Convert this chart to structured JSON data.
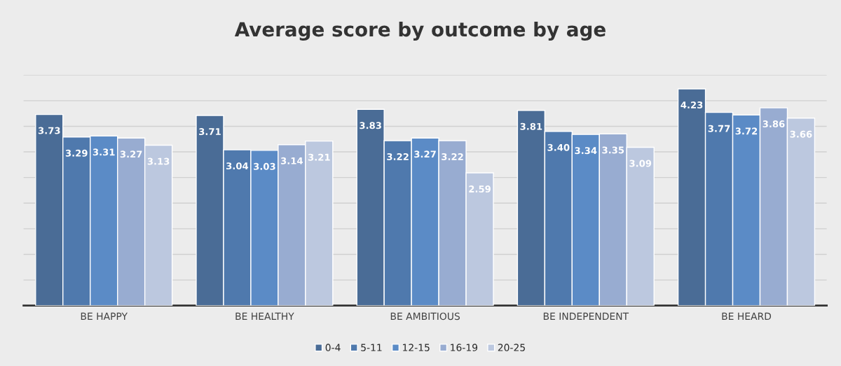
{
  "chart_data": {
    "type": "bar",
    "title": "Average score by outcome by age",
    "categories": [
      "BE HAPPY",
      "BE HEALTHY",
      "BE AMBITIOUS",
      "BE INDEPENDENT",
      "BE HEARD"
    ],
    "series": [
      {
        "name": "0-4",
        "color": "#4a6c96",
        "values": [
          3.73,
          3.71,
          3.83,
          3.81,
          4.23
        ],
        "value_labels": [
          "3.73",
          "3.71",
          "3.83",
          "3.81",
          "4.23"
        ]
      },
      {
        "name": "5-11",
        "color": "#4f79ad",
        "values": [
          3.29,
          3.04,
          3.22,
          3.4,
          3.77
        ],
        "value_labels": [
          "3.29",
          "3.04",
          "3.22",
          "3.40",
          "3.77"
        ]
      },
      {
        "name": "12-15",
        "color": "#5b8bc6",
        "values": [
          3.31,
          3.03,
          3.27,
          3.34,
          3.72
        ],
        "value_labels": [
          "3.31",
          "3.03",
          "3.27",
          "3.34",
          "3.72"
        ]
      },
      {
        "name": "16-19",
        "color": "#98acd1",
        "values": [
          3.27,
          3.14,
          3.22,
          3.35,
          3.86
        ],
        "value_labels": [
          "3.27",
          "3.14",
          "3.22",
          "3.35",
          "3.86"
        ]
      },
      {
        "name": "20-25",
        "color": "#bcc8df",
        "values": [
          3.13,
          3.21,
          2.59,
          3.09,
          3.66
        ],
        "value_labels": [
          "3.13",
          "3.21",
          "2.59",
          "3.09",
          "3.66"
        ]
      }
    ],
    "ylim": [
      0,
      4.5
    ],
    "grid": "y",
    "legend": "bottom",
    "tick_labels": "x"
  }
}
